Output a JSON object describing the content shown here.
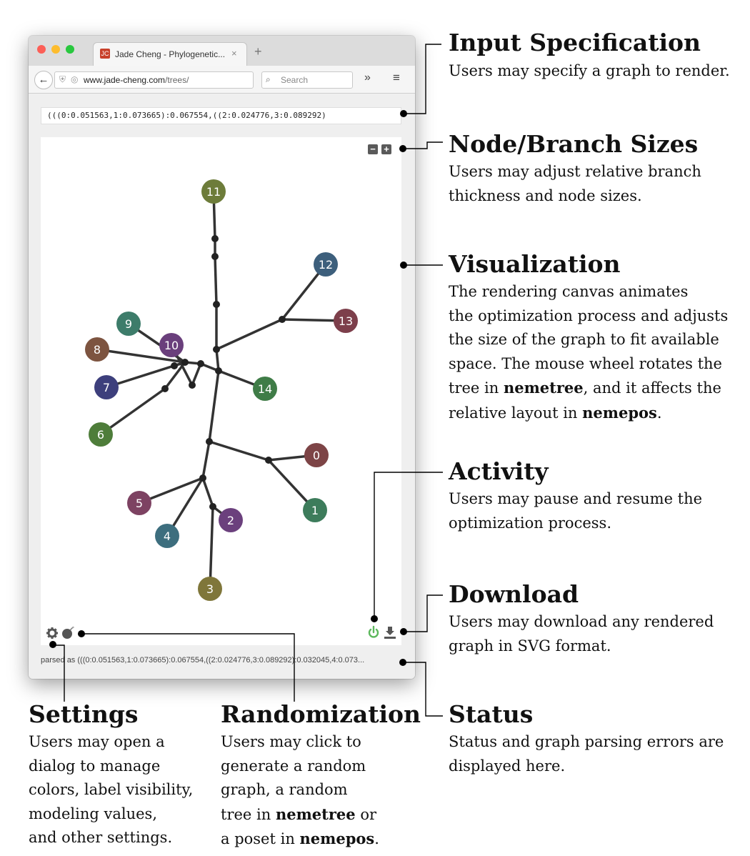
{
  "browser": {
    "tab_title": "Jade Cheng - Phylogenetic...",
    "tab_close": "×",
    "new_tab": "+",
    "url_domain": "www.jade-cheng.com",
    "url_path": "/trees/",
    "search_placeholder": "Search",
    "favicon_text": "JC",
    "icons": [
      "back-icon",
      "shield-icon",
      "globe-icon",
      "reload-icon",
      "search-icon",
      "overflow-icon",
      "menu-icon"
    ]
  },
  "app": {
    "graph_input_value": "(((0:0.051563,1:0.073665):0.067554,((2:0.024776,3:0.089292)",
    "zoom_out_label": "−",
    "zoom_in_label": "+",
    "status_text": "parsed as (((0:0.051563,1:0.073665):0.067554,((2:0.024776,3:0.089292):0.032045,4:0.073...",
    "icons": [
      "settings-icon",
      "randomize-icon",
      "power-icon",
      "download-icon"
    ],
    "colors": {
      "power": "#5cb85c",
      "edge": "#333333",
      "junction": "#222222"
    }
  },
  "tree": {
    "nodes": [
      {
        "label": "0",
        "color": "#7d4446"
      },
      {
        "label": "1",
        "color": "#3d7c5b"
      },
      {
        "label": "2",
        "color": "#6b407d"
      },
      {
        "label": "3",
        "color": "#7f763a"
      },
      {
        "label": "4",
        "color": "#3d6e7e"
      },
      {
        "label": "5",
        "color": "#7d4262"
      },
      {
        "label": "6",
        "color": "#4e7d3a"
      },
      {
        "label": "7",
        "color": "#3d3f7c"
      },
      {
        "label": "8",
        "color": "#7d5440"
      },
      {
        "label": "9",
        "color": "#3d7c6a"
      },
      {
        "label": "10",
        "color": "#6a3f7c"
      },
      {
        "label": "11",
        "color": "#6d7c3a"
      },
      {
        "label": "12",
        "color": "#3d5f7c"
      },
      {
        "label": "13",
        "color": "#7d3f4b"
      },
      {
        "label": "14",
        "color": "#3f7c47"
      }
    ]
  },
  "annotations": {
    "input_spec": {
      "title": "Input Specification",
      "desc": "Users may specify a graph to render."
    },
    "sizes": {
      "title": "Node/Branch Sizes",
      "desc": "Users may adjust relative branch\nthickness and node sizes."
    },
    "visualization": {
      "title": "Visualization",
      "desc_1": "The rendering canvas animates\nthe optimization process and adjusts\nthe size of the graph to fit available\nspace. The mouse wheel rotates the\ntree in ",
      "bold_1": "nemetree",
      "desc_2": ", and it affects the\nrelative layout in ",
      "bold_2": "nemepos",
      "desc_3": "."
    },
    "activity": {
      "title": "Activity",
      "desc": "Users may pause and resume the\noptimization process."
    },
    "download": {
      "title": "Download",
      "desc": "Users may download any rendered\ngraph in SVG format."
    },
    "status": {
      "title": "Status",
      "desc": "Status and graph parsing errors are\ndisplayed here."
    },
    "settings": {
      "title": "Settings",
      "desc": "Users may open a\ndialog to manage\ncolors, label visibility,\nmodeling values,\nand other settings."
    },
    "randomization": {
      "title": "Randomization",
      "desc_1": "Users may click to\ngenerate a random\ngraph, a random\ntree in ",
      "bold_1": "nemetree",
      "desc_2": " or\na poset in ",
      "bold_2": "nemepos",
      "desc_3": "."
    }
  }
}
